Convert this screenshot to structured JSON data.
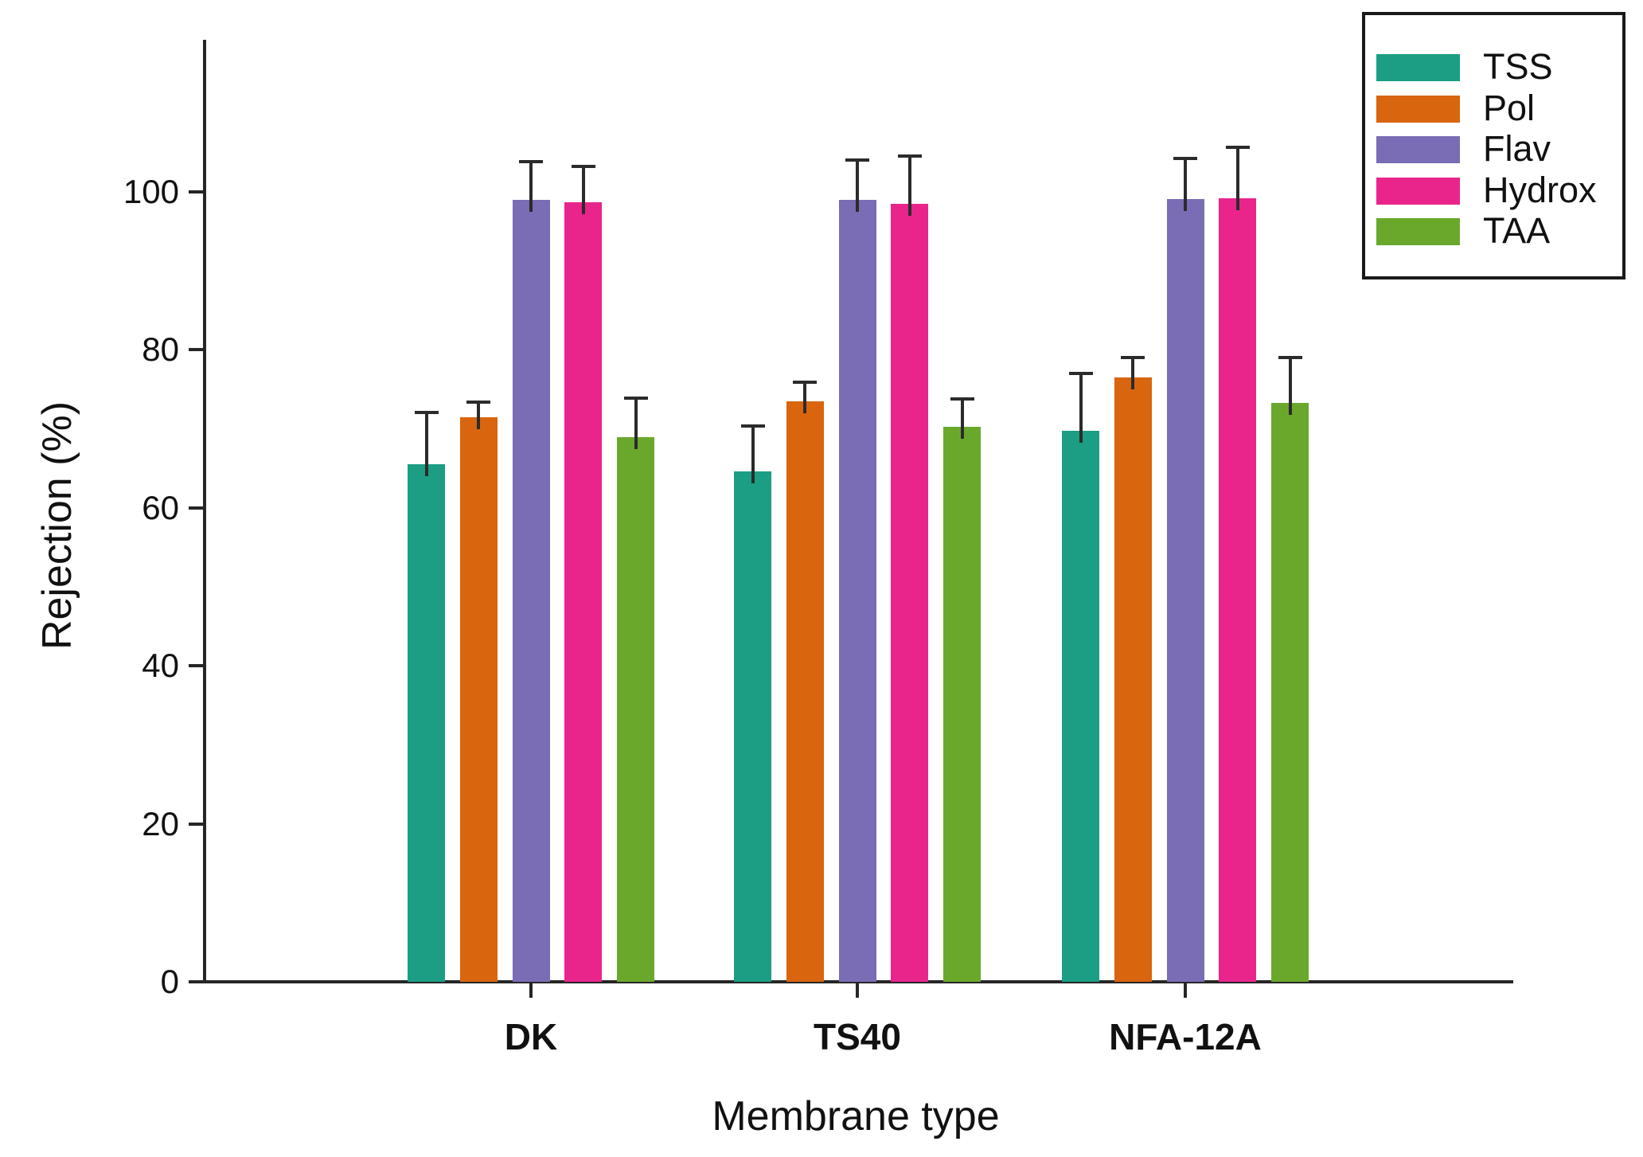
{
  "figure": {
    "background": "#ffffff",
    "axis_color": "#262626",
    "error_bar_color": "#2b2b2b",
    "text_color": "#111111"
  },
  "chart_data": {
    "type": "bar",
    "title": "",
    "xlabel": "Membrane type",
    "ylabel": "Rejection (%)",
    "categories": [
      "DK",
      "TS40",
      "NFA-12A"
    ],
    "series": [
      {
        "name": "TSS",
        "color": "#1b9e83",
        "values": [
          65.5,
          64.6,
          69.8
        ],
        "errors_upper": [
          6.6,
          5.8,
          7.2
        ]
      },
      {
        "name": "Pol",
        "color": "#d9650f",
        "values": [
          71.5,
          73.5,
          76.5
        ],
        "errors_upper": [
          1.9,
          2.4,
          2.5
        ]
      },
      {
        "name": "Flav",
        "color": "#7a6cb5",
        "values": [
          99.0,
          99.0,
          99.1
        ],
        "errors_upper": [
          4.8,
          5.0,
          5.1
        ]
      },
      {
        "name": "Hydrox",
        "color": "#e9258c",
        "values": [
          98.7,
          98.5,
          99.2
        ],
        "errors_upper": [
          4.5,
          6.0,
          6.4
        ]
      },
      {
        "name": "TAA",
        "color": "#6aa82c",
        "values": [
          69.0,
          70.3,
          73.3
        ],
        "errors_upper": [
          4.9,
          3.5,
          5.7
        ]
      }
    ],
    "yticks": [
      0,
      20,
      40,
      60,
      80,
      100
    ],
    "ylim": [
      0,
      119
    ],
    "grid": false,
    "error_bars": "upper-only",
    "legend_position": "top-right",
    "legend_items": [
      "TSS",
      "Pol",
      "Flav",
      "Hydrox",
      "TAA"
    ]
  }
}
